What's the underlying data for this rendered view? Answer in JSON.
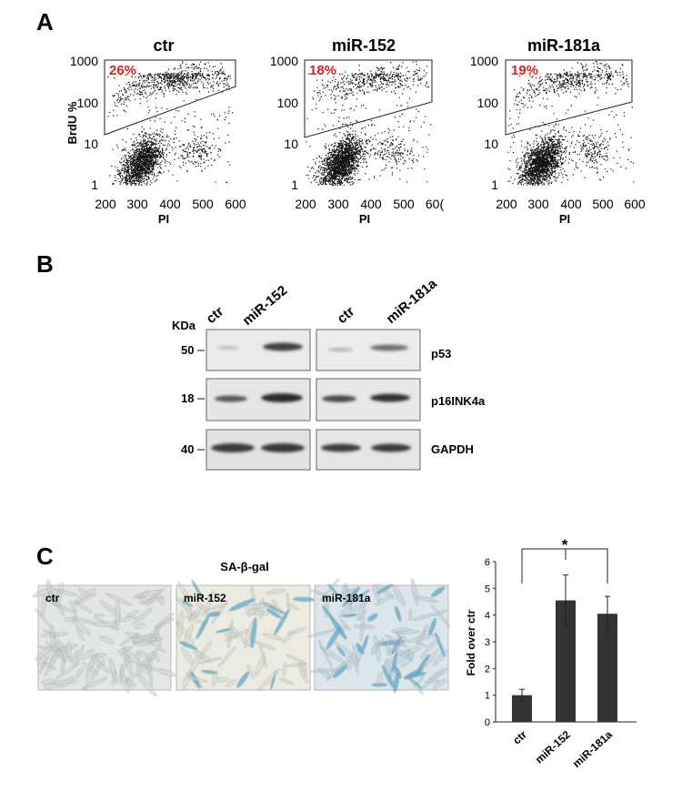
{
  "panel_a": {
    "label": "A",
    "ylabel": "BrdU %",
    "xlabel": "PI",
    "x_ticks": [
      "200",
      "300",
      "400",
      "500",
      "600"
    ],
    "y_ticks": [
      "1",
      "10",
      "100",
      "1000"
    ],
    "plots": [
      {
        "title": "ctr",
        "gate_percent": "26%",
        "last_x_tick": "600"
      },
      {
        "title": "miR-152",
        "gate_percent": "18%",
        "last_x_tick": "60("
      },
      {
        "title": "miR-181a",
        "gate_percent": "19%",
        "last_x_tick": "600"
      }
    ]
  },
  "panel_b": {
    "label": "B",
    "kda_label": "KDa",
    "lanes": [
      "ctr",
      "miR-152",
      "ctr",
      "miR-181a"
    ],
    "rows": [
      {
        "kda": "50",
        "protein": "p53"
      },
      {
        "kda": "18",
        "protein": "p16INK4a"
      },
      {
        "kda": "40",
        "protein": "GAPDH"
      }
    ]
  },
  "panel_c": {
    "label": "C",
    "stain_title": "SA-β-gal",
    "images": [
      "ctr",
      "miR-152",
      "miR-181a"
    ],
    "significance": "*",
    "chart_data": {
      "type": "bar",
      "categories": [
        "ctr",
        "miR-152",
        "miR-181a"
      ],
      "values": [
        1.0,
        4.55,
        4.05
      ],
      "errors": [
        0.22,
        0.95,
        0.65
      ],
      "ylabel": "Fold over ctr",
      "ylim": [
        0,
        6
      ],
      "y_ticks": [
        "0",
        "1",
        "2",
        "3",
        "4",
        "5",
        "6"
      ],
      "bar_color": "#333333"
    }
  },
  "colors": {
    "gate_label": "#e0201f",
    "blue_stain": "#4aa6c8"
  }
}
